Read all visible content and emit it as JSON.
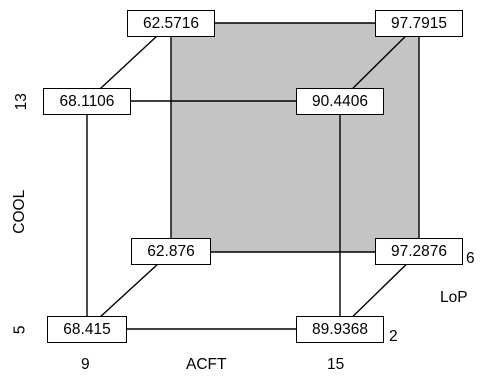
{
  "colors": {
    "face": "#c4c4c4",
    "line": "#000000",
    "box_fill": "#ffffff"
  },
  "corners": {
    "front_bottom_left": "68.415",
    "front_bottom_right": "89.9368",
    "front_top_left": "68.1106",
    "front_top_right": "90.4406",
    "back_bottom_left": "62.876",
    "back_bottom_right": "97.2876",
    "back_top_left": "62.5716",
    "back_top_right": "97.7915"
  },
  "axes": {
    "x": {
      "name": "ACFT",
      "low": "9",
      "high": "15"
    },
    "y": {
      "name": "COOL",
      "low": "5",
      "high": "13"
    },
    "z": {
      "name": "LoP",
      "low": "2",
      "high": "6"
    }
  },
  "shaded_face": "back"
}
